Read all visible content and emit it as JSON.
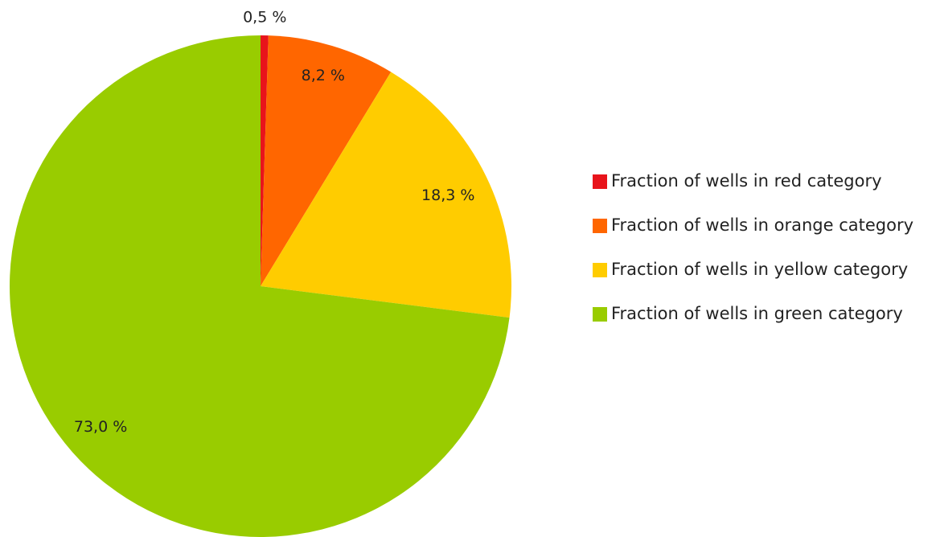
{
  "chart_data": {
    "type": "pie",
    "categories": [
      "Fraction of wells in red category",
      "Fraction of wells in orange category",
      "Fraction of wells in yellow category",
      "Fraction of wells in green category"
    ],
    "values": [
      0.5,
      8.2,
      18.3,
      73.0
    ],
    "value_labels": [
      "0,5 %",
      "8,2 %",
      "18,3 %",
      "73,0 %"
    ],
    "colors": [
      "#e8141b",
      "#ff6600",
      "#ffcc00",
      "#99cc00"
    ],
    "legend": "right"
  }
}
